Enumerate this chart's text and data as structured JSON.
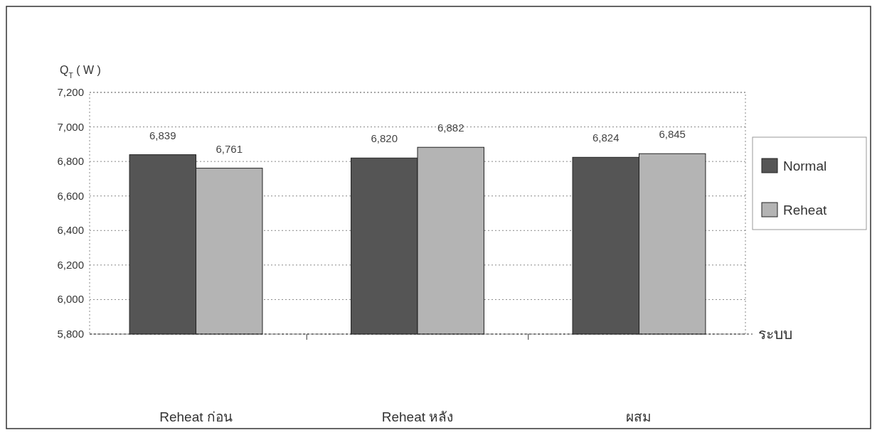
{
  "chart_data": {
    "type": "bar",
    "ylabel": "Q$_{T}$ ( W )",
    "xlabel": "ระบบ",
    "categories": [
      "Reheat ก่อน",
      "Reheat หลัง",
      "ผสม"
    ],
    "series": [
      {
        "name": "Normal",
        "color": "#555555",
        "values": [
          6839,
          6820,
          6824
        ],
        "value_labels": [
          "6,839",
          "6,820",
          "6,824"
        ]
      },
      {
        "name": "Reheat",
        "color": "#b4b4b4",
        "values": [
          6761,
          6882,
          6845
        ],
        "value_labels": [
          "6,761",
          "6,882",
          "6,845"
        ]
      }
    ],
    "ylim": [
      5800,
      7200
    ],
    "yticks": [
      {
        "value": 5800,
        "label": "5,800"
      },
      {
        "value": 6000,
        "label": "6,000"
      },
      {
        "value": 6200,
        "label": "6,200"
      },
      {
        "value": 6400,
        "label": "6,400"
      },
      {
        "value": 6600,
        "label": "6,600"
      },
      {
        "value": 6800,
        "label": "6,800"
      },
      {
        "value": 7000,
        "label": "7,000"
      },
      {
        "value": 7200,
        "label": "7,200"
      }
    ],
    "grid": "y",
    "legend": "right"
  }
}
